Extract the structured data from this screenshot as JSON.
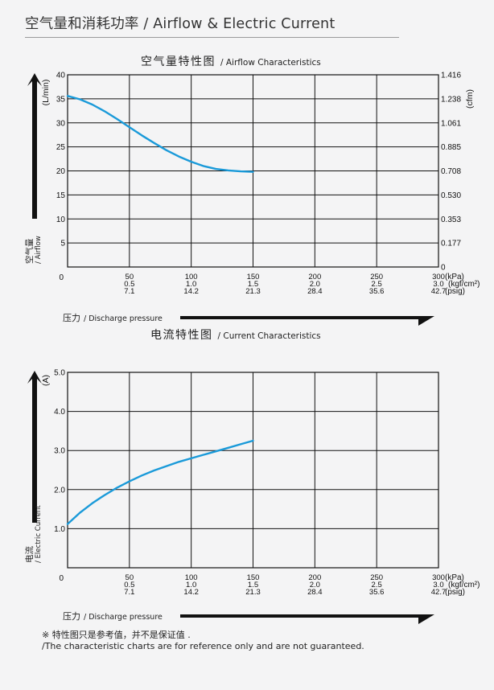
{
  "page": {
    "title": "空气量和消耗功率 / Airflow & Electric Current",
    "note_cn": "※ 特性图只是参考值，并不是保证值 .",
    "note_en": "/The characteristic charts are for reference only and are not guaranteed."
  },
  "colors": {
    "curve": "#1a9ad9",
    "grid": "#111111",
    "arrow": "#111111"
  },
  "chart_data": [
    {
      "type": "line",
      "title_cn": "空气量特性图",
      "title_en": "/ Airflow Characteristics",
      "ylabel_cn": "空气量",
      "ylabel_en": "/ Airflow",
      "ylabel_unit": "(L/min)",
      "y2label_unit": "(cfm)",
      "xlabel_cn": "压力",
      "xlabel_en": "/ Discharge pressure",
      "x_units": [
        "(kPa)",
        "(kgf/cm²)",
        "(psig)"
      ],
      "x_ticks": [
        {
          "kpa": 50,
          "kgf": "0.5",
          "psig": "7.1"
        },
        {
          "kpa": 100,
          "kgf": "1.0",
          "psig": "14.2"
        },
        {
          "kpa": 150,
          "kgf": "1.5",
          "psig": "21.3"
        },
        {
          "kpa": 200,
          "kgf": "2.0",
          "psig": "28.4"
        },
        {
          "kpa": 250,
          "kgf": "2.5",
          "psig": "35.6"
        },
        {
          "kpa": 300,
          "kgf": "3.0",
          "psig": "42.7"
        }
      ],
      "x_origin_label": "0",
      "xlim": [
        0,
        300
      ],
      "ylim": [
        0,
        40
      ],
      "y_ticks": [
        5,
        10,
        15,
        20,
        25,
        30,
        35,
        40
      ],
      "y2_ticks": [
        "0",
        "0.177",
        "0.353",
        "0.530",
        "0.708",
        "0.885",
        "1.061",
        "1.238",
        "1.416"
      ],
      "grid": true,
      "series": [
        {
          "x": [
            0,
            10,
            20,
            30,
            40,
            50,
            60,
            70,
            80,
            90,
            100,
            110,
            120,
            130,
            140,
            150
          ],
          "y": [
            35.6,
            34.9,
            33.8,
            32.4,
            30.8,
            29.1,
            27.4,
            25.8,
            24.3,
            23.0,
            21.9,
            21.0,
            20.4,
            20.1,
            19.9,
            19.8
          ]
        }
      ]
    },
    {
      "type": "line",
      "title_cn": "电流特性图",
      "title_en": "/ Current Characteristics",
      "ylabel_cn": "电流",
      "ylabel_en": "/ Electric Current",
      "ylabel_unit": "(A)",
      "xlabel_cn": "压力",
      "xlabel_en": "/ Discharge pressure",
      "x_units": [
        "(kPa)",
        "(kgf/cm²)",
        "(psig)"
      ],
      "x_ticks": [
        {
          "kpa": 50,
          "kgf": "0.5",
          "psig": "7.1"
        },
        {
          "kpa": 100,
          "kgf": "1.0",
          "psig": "14.2"
        },
        {
          "kpa": 150,
          "kgf": "1.5",
          "psig": "21.3"
        },
        {
          "kpa": 200,
          "kgf": "2.0",
          "psig": "28.4"
        },
        {
          "kpa": 250,
          "kgf": "2.5",
          "psig": "35.6"
        },
        {
          "kpa": 300,
          "kgf": "3.0",
          "psig": "42.7"
        }
      ],
      "x_origin_label": "0",
      "xlim": [
        0,
        300
      ],
      "ylim": [
        0,
        5
      ],
      "y_ticks": [
        "1.0",
        "2.0",
        "3.0",
        "4.0",
        "5.0"
      ],
      "grid": true,
      "series": [
        {
          "x": [
            0,
            10,
            20,
            30,
            40,
            50,
            60,
            70,
            80,
            90,
            100,
            110,
            120,
            130,
            140,
            150
          ],
          "y": [
            1.12,
            1.41,
            1.65,
            1.86,
            2.05,
            2.21,
            2.36,
            2.49,
            2.6,
            2.71,
            2.8,
            2.89,
            2.98,
            3.07,
            3.16,
            3.25
          ]
        }
      ]
    }
  ]
}
